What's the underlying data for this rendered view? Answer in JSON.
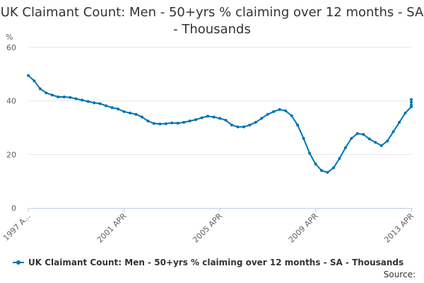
{
  "chart_data": {
    "type": "line",
    "title": "UK Claimant Count: Men - 50+yrs % claiming over 12 months - SA - Thousands",
    "unit_label": "%",
    "xlabel": "",
    "ylabel": "",
    "ylim": [
      0,
      60
    ],
    "yticks": [
      "0",
      "20",
      "40",
      "60"
    ],
    "xticks": [
      {
        "label": "1997 A...",
        "x": 1997.25
      },
      {
        "label": "2001 APR",
        "x": 2001.25
      },
      {
        "label": "2005 APR",
        "x": 2005.25
      },
      {
        "label": "2009 APR",
        "x": 2009.25
      },
      {
        "label": "2013 APR",
        "x": 2013.25
      }
    ],
    "xlim": [
      1997.25,
      2013.25
    ],
    "grid": true,
    "legend_position": "bottom",
    "series": [
      {
        "name": "UK Claimant Count: Men - 50+yrs % claiming over 12 months - SA - Thousands",
        "color": "#0072b2",
        "points": [
          [
            1997.25,
            49.5
          ],
          [
            1997.5,
            47.5
          ],
          [
            1997.75,
            44.5
          ],
          [
            1998.0,
            43.0
          ],
          [
            1998.25,
            42.2
          ],
          [
            1998.5,
            41.5
          ],
          [
            1998.75,
            41.5
          ],
          [
            1999.0,
            41.3
          ],
          [
            1999.25,
            40.8
          ],
          [
            1999.5,
            40.3
          ],
          [
            1999.75,
            39.8
          ],
          [
            2000.0,
            39.3
          ],
          [
            2000.25,
            39.0
          ],
          [
            2000.5,
            38.2
          ],
          [
            2000.75,
            37.5
          ],
          [
            2001.0,
            37.0
          ],
          [
            2001.25,
            36.0
          ],
          [
            2001.5,
            35.5
          ],
          [
            2001.75,
            35.0
          ],
          [
            2002.0,
            34.0
          ],
          [
            2002.25,
            32.5
          ],
          [
            2002.5,
            31.6
          ],
          [
            2002.75,
            31.4
          ],
          [
            2003.0,
            31.5
          ],
          [
            2003.25,
            31.8
          ],
          [
            2003.5,
            31.7
          ],
          [
            2003.75,
            32.0
          ],
          [
            2004.0,
            32.5
          ],
          [
            2004.25,
            33.0
          ],
          [
            2004.5,
            33.7
          ],
          [
            2004.75,
            34.3
          ],
          [
            2005.0,
            34.0
          ],
          [
            2005.25,
            33.5
          ],
          [
            2005.5,
            32.8
          ],
          [
            2005.75,
            31.0
          ],
          [
            2006.0,
            30.3
          ],
          [
            2006.25,
            30.3
          ],
          [
            2006.5,
            31.0
          ],
          [
            2006.75,
            32.0
          ],
          [
            2007.0,
            33.5
          ],
          [
            2007.25,
            35.0
          ],
          [
            2007.5,
            36.0
          ],
          [
            2007.75,
            36.8
          ],
          [
            2008.0,
            36.3
          ],
          [
            2008.25,
            34.5
          ],
          [
            2008.5,
            31.0
          ],
          [
            2008.75,
            26.0
          ],
          [
            2009.0,
            20.5
          ],
          [
            2009.25,
            16.5
          ],
          [
            2009.5,
            14.0
          ],
          [
            2009.75,
            13.3
          ],
          [
            2010.0,
            15.0
          ],
          [
            2010.25,
            18.5
          ],
          [
            2010.5,
            22.5
          ],
          [
            2010.75,
            26.0
          ],
          [
            2011.0,
            27.8
          ],
          [
            2011.25,
            27.5
          ],
          [
            2011.5,
            25.8
          ],
          [
            2011.75,
            24.5
          ],
          [
            2012.0,
            23.3
          ],
          [
            2012.25,
            25.0
          ],
          [
            2012.5,
            28.5
          ],
          [
            2012.75,
            32.0
          ],
          [
            2013.0,
            35.5
          ],
          [
            2013.25,
            37.8
          ],
          [
            2013.5,
            38.5
          ],
          [
            2013.75,
            39.5
          ],
          [
            2014.0,
            40.5
          ]
        ]
      }
    ]
  },
  "source_label": "Source:"
}
